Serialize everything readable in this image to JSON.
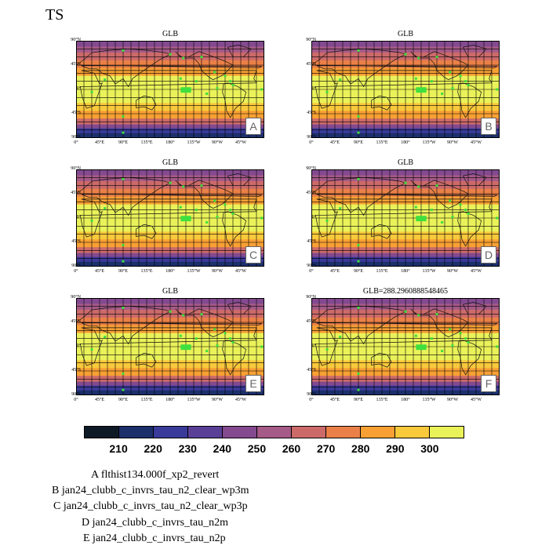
{
  "title": "TS",
  "panels": [
    {
      "letter": "A",
      "title": "GLB"
    },
    {
      "letter": "B",
      "title": "GLB"
    },
    {
      "letter": "C",
      "title": "GLB"
    },
    {
      "letter": "D",
      "title": "GLB"
    },
    {
      "letter": "E",
      "title": "GLB"
    },
    {
      "letter": "F",
      "title": "GLB=288.2960888548465"
    }
  ],
  "lat_labels": [
    "90°N",
    "45°N",
    "0°",
    "45°S",
    "90°S"
  ],
  "lon_labels": [
    "0°",
    "45°E",
    "90°E",
    "135°E",
    "180°",
    "135°W",
    "90°W",
    "45°W"
  ],
  "colorbar": {
    "levels": [
      "210",
      "220",
      "230",
      "240",
      "250",
      "260",
      "270",
      "280",
      "290",
      "300"
    ],
    "colors": [
      "#0d1a26",
      "#1b2f6b",
      "#3a3a9a",
      "#5a3f96",
      "#834a8f",
      "#a55a88",
      "#cc6a6a",
      "#ea8048",
      "#f8a034",
      "#f9c93c",
      "#eaf25a"
    ]
  },
  "legend": [
    "A  flthist134.000f_xp2_revert",
    "B  jan24_clubb_c_invrs_tau_n2_clear_wp3m",
    "C  jan24_clubb_c_invrs_tau_n2_clear_wp3p",
    "D  jan24_clubb_c_invrs_tau_n2m",
    "E  jan24_clubb_c_invrs_tau_n2p"
  ]
}
